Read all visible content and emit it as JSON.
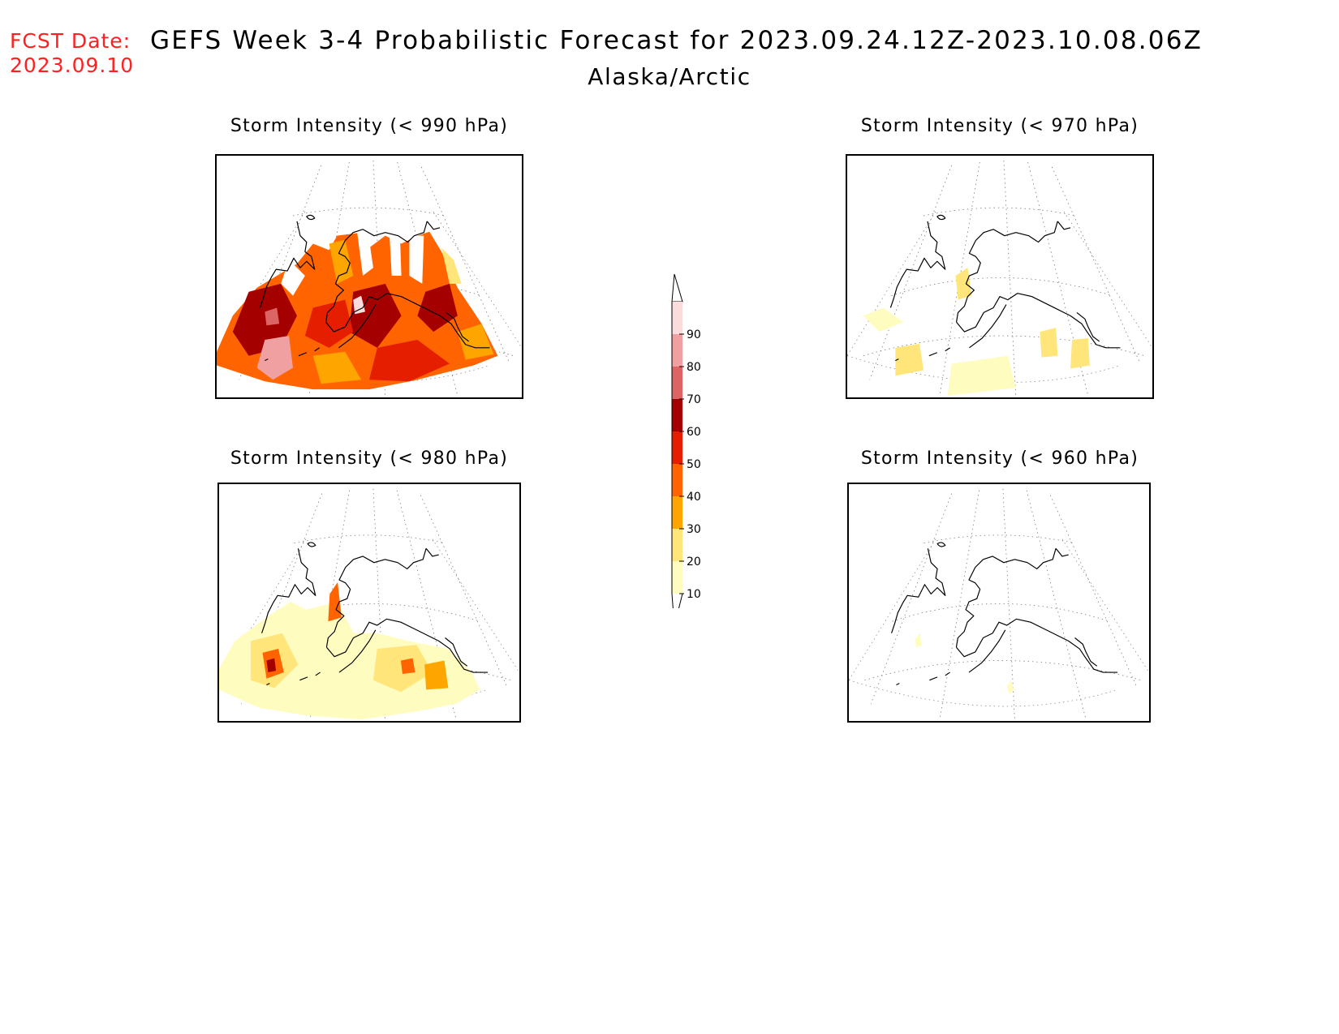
{
  "header": {
    "fcst_label": "FCST Date:",
    "fcst_date": "2023.09.10",
    "title": "GEFS Week 3-4 Probabilistic Forecast for 2023.09.24.12Z-2023.10.08.06Z",
    "subtitle": "Alaska/Arctic"
  },
  "panels": [
    {
      "title": "Storm Intensity (< 990 hPa)",
      "threshold_hpa": 990,
      "coverage": "widespread",
      "max_prob": 90
    },
    {
      "title": "Storm Intensity (< 970 hPa)",
      "threshold_hpa": 970,
      "coverage": "sparse",
      "max_prob": 30
    },
    {
      "title": "Storm Intensity (< 980 hPa)",
      "threshold_hpa": 980,
      "coverage": "moderate",
      "max_prob": 60
    },
    {
      "title": "Storm Intensity (< 960 hPa)",
      "threshold_hpa": 960,
      "coverage": "minimal",
      "max_prob": 20
    }
  ],
  "colorbar": {
    "levels": [
      "10",
      "20",
      "30",
      "40",
      "50",
      "60",
      "70",
      "80",
      "90"
    ],
    "colors": [
      "#fffcc0",
      "#ffe57a",
      "#ffa500",
      "#ff6400",
      "#e61e00",
      "#a50000",
      "#dc6464",
      "#f0a0a0",
      "#fadcdc"
    ]
  }
}
